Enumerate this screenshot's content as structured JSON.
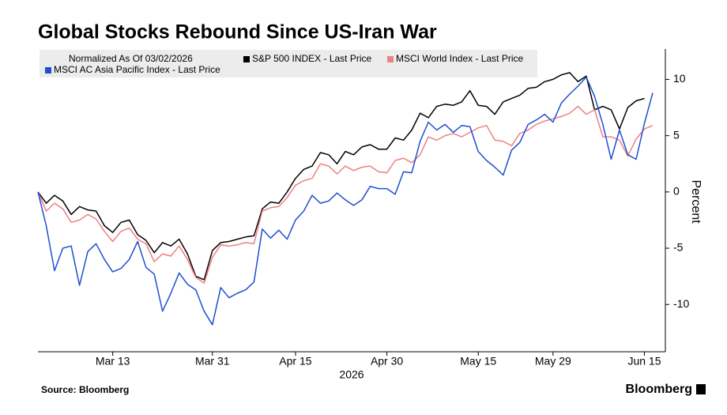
{
  "chart_data": {
    "type": "line",
    "title": "Global Stocks Rebound Since US-Iran War",
    "legend_title": "Normalized As Of 03/02/2026",
    "ylabel": "Percent",
    "xlabel": "2026",
    "source": "Source: Bloomberg",
    "brand": "Bloomberg",
    "categories": [
      "2026-03-02",
      "2026-03-03",
      "2026-03-04",
      "2026-03-05",
      "2026-03-06",
      "2026-03-09",
      "2026-03-10",
      "2026-03-11",
      "2026-03-12",
      "2026-03-13",
      "2026-03-16",
      "2026-03-17",
      "2026-03-18",
      "2026-03-19",
      "2026-03-20",
      "2026-03-23",
      "2026-03-24",
      "2026-03-25",
      "2026-03-26",
      "2026-03-27",
      "2026-03-30",
      "2026-03-31",
      "2026-04-01",
      "2026-04-02",
      "2026-04-06",
      "2026-04-07",
      "2026-04-08",
      "2026-04-09",
      "2026-04-10",
      "2026-04-13",
      "2026-04-14",
      "2026-04-15",
      "2026-04-16",
      "2026-04-17",
      "2026-04-20",
      "2026-04-21",
      "2026-04-22",
      "2026-04-23",
      "2026-04-24",
      "2026-04-27",
      "2026-04-28",
      "2026-04-29",
      "2026-04-30",
      "2026-05-01",
      "2026-05-04",
      "2026-05-05",
      "2026-05-06",
      "2026-05-07",
      "2026-05-08",
      "2026-05-11",
      "2026-05-12",
      "2026-05-13",
      "2026-05-14",
      "2026-05-15",
      "2026-05-18",
      "2026-05-19",
      "2026-05-20",
      "2026-05-21",
      "2026-05-22",
      "2026-05-26",
      "2026-05-27",
      "2026-05-28",
      "2026-05-29",
      "2026-06-01",
      "2026-06-02",
      "2026-06-03",
      "2026-06-04",
      "2026-06-05",
      "2026-06-08",
      "2026-06-09",
      "2026-06-10",
      "2026-06-11",
      "2026-06-12",
      "2026-06-15",
      "2026-06-16"
    ],
    "xticks": [
      {
        "value": "2026-03-13",
        "label": "Mar 13"
      },
      {
        "value": "2026-03-31",
        "label": "Mar 31"
      },
      {
        "value": "2026-04-15",
        "label": "Apr 15"
      },
      {
        "value": "2026-04-30",
        "label": "Apr 30"
      },
      {
        "value": "2026-05-15",
        "label": "May 15"
      },
      {
        "value": "2026-05-29",
        "label": "May 29"
      },
      {
        "value": "2026-06-15",
        "label": "Jun 15"
      }
    ],
    "ylim": [
      -14.2,
      12.7
    ],
    "yticks": [
      -10,
      -5,
      0,
      5,
      10
    ],
    "y_axis_side": "right",
    "series": [
      {
        "name": "S&P 500 INDEX - Last Price",
        "color": "#000000",
        "values": [
          0,
          -1,
          -0.3,
          -0.8,
          -2,
          -1.3,
          -1.6,
          -1.7,
          -3,
          -3.6,
          -2.7,
          -2.5,
          -3.8,
          -4.3,
          -5.4,
          -4.5,
          -4.8,
          -4.2,
          -5.5,
          -7.5,
          -7.8,
          -5.2,
          -4.5,
          -4.4,
          -4.2,
          -4,
          -3.9,
          -1.5,
          -0.9,
          -1,
          0,
          1.2,
          2,
          2.3,
          3.5,
          3.3,
          2.5,
          3.6,
          3.3,
          4,
          4.2,
          3.8,
          3.8,
          4.8,
          4.6,
          5.5,
          7,
          6.6,
          7.6,
          7.8,
          7.7,
          8,
          9,
          7.7,
          7.6,
          6.9,
          8,
          8.3,
          8.6,
          9.2,
          9.3,
          9.8,
          10,
          10.4,
          10.6,
          9.8,
          10.3,
          7.3,
          7.6,
          7.3,
          5.6,
          7.5,
          8.1,
          8.3,
          null
        ]
      },
      {
        "name": "MSCI World Index - Last Price",
        "color": "#f08080",
        "values": [
          0,
          -1.7,
          -1,
          -1.5,
          -2.7,
          -2.5,
          -2,
          -2.4,
          -3.5,
          -4.4,
          -3.5,
          -3.2,
          -4.2,
          -4.6,
          -6.2,
          -5.5,
          -5.7,
          -4.8,
          -6,
          -7.6,
          -8.1,
          -5.8,
          -4.7,
          -4.8,
          -4.7,
          -4.5,
          -4.6,
          -1.7,
          -1.4,
          -1.3,
          -0.5,
          0.6,
          1,
          1.2,
          2.5,
          2.3,
          1.6,
          2.3,
          1.9,
          2.2,
          2.3,
          1.8,
          1.7,
          2.8,
          3,
          2.6,
          3.3,
          4.9,
          4.6,
          5,
          5.2,
          4.9,
          5.3,
          5.7,
          5.9,
          4.6,
          4.5,
          4.1,
          5.2,
          5.5,
          6,
          6.3,
          6.5,
          6.7,
          7,
          7.6,
          6.9,
          7.3,
          4.9,
          4.9,
          4.6,
          3.2,
          4.7,
          5.6,
          5.9
        ]
      },
      {
        "name": "MSCI AC Asia Pacific Index - Last Price",
        "color": "#1f4fd1",
        "values": [
          0,
          -3,
          -7,
          -5,
          -4.8,
          -8.3,
          -5.3,
          -4.6,
          -6,
          -7.1,
          -6.8,
          -6,
          -4.4,
          -6.7,
          -7.3,
          -10.6,
          -9,
          -7.2,
          -8.2,
          -8.7,
          -10.6,
          -11.8,
          -8.5,
          -9.4,
          -9,
          -8.7,
          -8,
          -3.3,
          -4.1,
          -3.4,
          -4.2,
          -2.5,
          -1.7,
          -0.3,
          -1,
          -0.8,
          -0.1,
          -0.7,
          -1.2,
          -0.7,
          0.5,
          0.3,
          0.3,
          -0.2,
          1.8,
          1.7,
          4.5,
          6.2,
          5.5,
          6,
          5.3,
          5.9,
          5.8,
          3.6,
          2.8,
          2.2,
          1.5,
          3.7,
          4.4,
          6,
          6.4,
          6.9,
          6.2,
          7.9,
          8.7,
          9.4,
          10.2,
          8.5,
          6,
          2.9,
          5.5,
          3.3,
          2.9,
          6.1,
          8.8
        ]
      }
    ]
  }
}
